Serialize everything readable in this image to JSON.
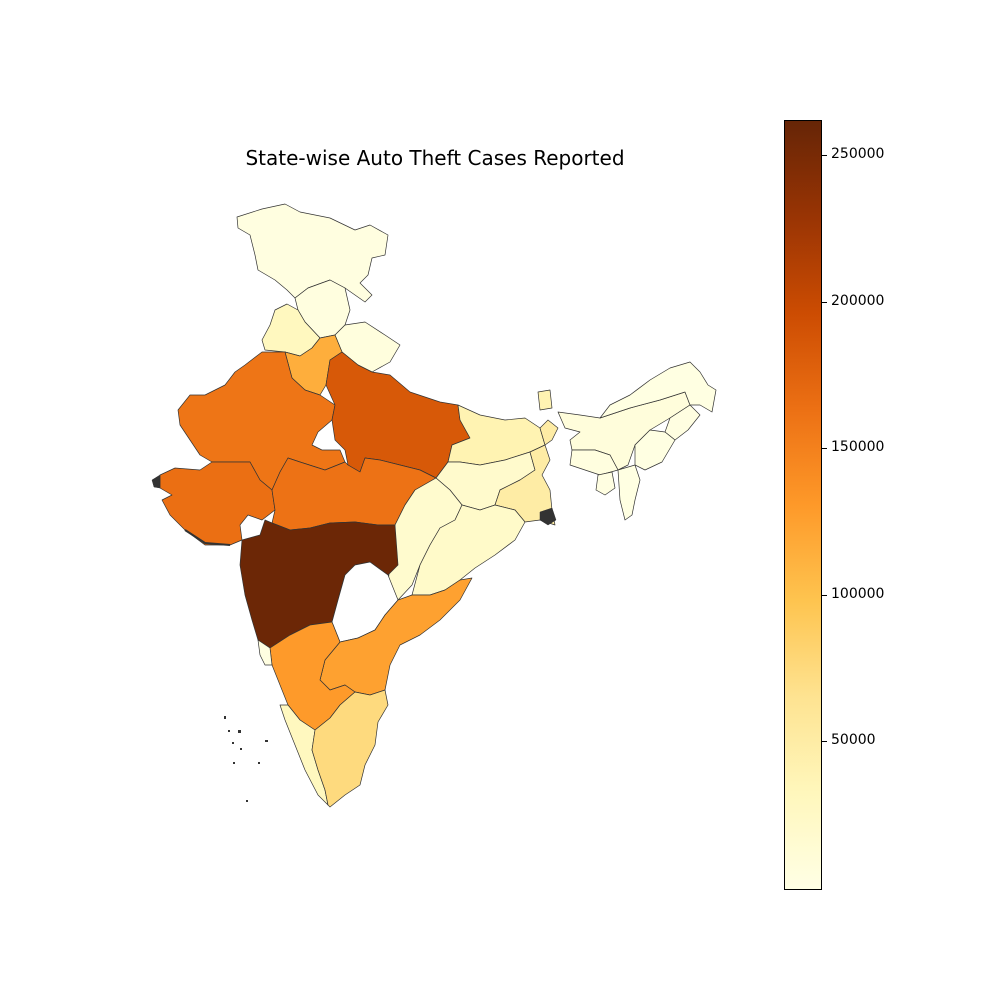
{
  "title": "State-wise Auto Theft Cases Reported",
  "colorbar": {
    "min": 0,
    "max": 262000,
    "ticks": [
      {
        "value": 250000,
        "label": "250000"
      },
      {
        "value": 200000,
        "label": "200000"
      },
      {
        "value": 150000,
        "label": "150000"
      },
      {
        "value": 100000,
        "label": "100000"
      },
      {
        "value": 50000,
        "label": "50000"
      }
    ],
    "colors": [
      "#ffffe5",
      "#fff7bc",
      "#fee391",
      "#fec44f",
      "#fe9929",
      "#ec7014",
      "#cc4c02",
      "#993404",
      "#662506"
    ]
  },
  "states": [
    {
      "id": "jammu-kashmir",
      "value": 4000
    },
    {
      "id": "himachal-pradesh",
      "value": 5000
    },
    {
      "id": "punjab",
      "value": 30000
    },
    {
      "id": "uttarakhand",
      "value": 6000
    },
    {
      "id": "haryana",
      "value": 115000
    },
    {
      "id": "rajasthan",
      "value": 160000
    },
    {
      "id": "uttar-pradesh",
      "value": 185000
    },
    {
      "id": "gujarat",
      "value": 165000
    },
    {
      "id": "madhya-pradesh",
      "value": 162000
    },
    {
      "id": "bihar",
      "value": 40000
    },
    {
      "id": "jharkhand",
      "value": 20000
    },
    {
      "id": "west-bengal",
      "value": 50000
    },
    {
      "id": "chhattisgarh",
      "value": 18000
    },
    {
      "id": "odisha",
      "value": 22000
    },
    {
      "id": "maharashtra",
      "value": 258000
    },
    {
      "id": "telangana",
      "value": null
    },
    {
      "id": "andhra-pradesh",
      "value": 125000
    },
    {
      "id": "karnataka",
      "value": 130000
    },
    {
      "id": "goa",
      "value": 3000
    },
    {
      "id": "kerala",
      "value": 30000
    },
    {
      "id": "tamil-nadu",
      "value": 75000
    },
    {
      "id": "sikkim",
      "value": 40000
    },
    {
      "id": "assam",
      "value": 8000
    },
    {
      "id": "arunachal-pradesh",
      "value": 2000
    },
    {
      "id": "meghalaya",
      "value": 5000
    },
    {
      "id": "nagaland",
      "value": 3000
    },
    {
      "id": "manipur",
      "value": 2000
    },
    {
      "id": "mizoram",
      "value": 2000
    },
    {
      "id": "tripura",
      "value": 3000
    }
  ]
}
